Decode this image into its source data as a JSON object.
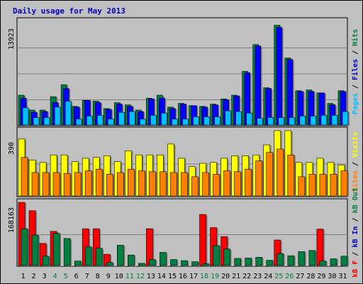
{
  "chart_data": {
    "type": "bar",
    "title": "Daily usage for May 2013",
    "categories": [
      "1",
      "2",
      "3",
      "4",
      "5",
      "6",
      "7",
      "8",
      "9",
      "10",
      "11",
      "12",
      "13",
      "14",
      "15",
      "16",
      "17",
      "18",
      "19",
      "20",
      "21",
      "22",
      "23",
      "24",
      "25",
      "26",
      "27",
      "28",
      "29",
      "30",
      "31"
    ],
    "weekend_days": [
      4,
      5,
      11,
      12,
      18,
      19,
      25,
      26
    ],
    "panels": [
      {
        "id": "hits-files-pages",
        "ylabel_top": "13923",
        "ymax": 13923,
        "right_label": [
          {
            "text": "Pages",
            "color": "#00c0ff"
          },
          {
            "text": " / ",
            "color": "#000000"
          },
          {
            "text": "Files",
            "color": "#0000c0"
          },
          {
            "text": " / ",
            "color": "#000000"
          },
          {
            "text": "Hits",
            "color": "#008040"
          }
        ],
        "series": [
          {
            "name": "Hits",
            "color": "#008040",
            "values": [
              4000,
              2000,
              2000,
              3800,
              5400,
              2500,
              3300,
              3200,
              2200,
              3000,
              2700,
              2000,
              3600,
              4000,
              2400,
              2900,
              2600,
              2500,
              2800,
              3500,
              4000,
              7200,
              10800,
              5000,
              13400,
              9000,
              4600,
              4700,
              4300,
              2900,
              4600
            ]
          },
          {
            "name": "Files",
            "color": "#0000ff",
            "values": [
              3600,
              1700,
              1800,
              3000,
              4900,
              2400,
              3300,
              3000,
              2100,
              2800,
              2500,
              1800,
              3500,
              3600,
              2200,
              2800,
              2600,
              2400,
              2700,
              3400,
              3900,
              7000,
              10600,
              4900,
              13100,
              8800,
              4500,
              4500,
              4300,
              2700,
              4500
            ]
          },
          {
            "name": "Pages",
            "color": "#00c0ff",
            "values": [
              2300,
              1000,
              1000,
              2400,
              3200,
              800,
              1200,
              1300,
              800,
              1700,
              1800,
              800,
              1300,
              1600,
              800,
              800,
              1100,
              1100,
              1100,
              1900,
              1800,
              1600,
              900,
              1000,
              1000,
              1000,
              1200,
              1200,
              1300,
              1300,
              1800
            ]
          }
        ]
      },
      {
        "id": "visits-sites",
        "ylabel_top": "390",
        "ymax": 390,
        "right_label": [
          {
            "text": "Sites",
            "color": "#ff8000"
          },
          {
            "text": " / ",
            "color": "#000000"
          },
          {
            "text": "Visits",
            "color": "#ffff00"
          }
        ],
        "series": [
          {
            "name": "Visits",
            "color": "#ffff00",
            "values": [
              340,
              215,
              200,
              245,
              245,
              205,
              225,
              230,
              240,
              205,
              270,
              245,
              245,
              245,
              310,
              225,
              175,
              195,
              200,
              225,
              240,
              240,
              245,
              305,
              390,
              390,
              200,
              200,
              225,
              200,
              185
            ]
          },
          {
            "name": "Sites",
            "color": "#ff8000",
            "values": [
              230,
              140,
              140,
              140,
              135,
              140,
              150,
              160,
              130,
              140,
              160,
              150,
              145,
              145,
              140,
              140,
              115,
              140,
              130,
              150,
              145,
              160,
              210,
              260,
              280,
              245,
              115,
              130,
              130,
              130,
              150
            ]
          }
        ]
      },
      {
        "id": "kb-in-out",
        "ylabel_top": "168163",
        "ymax": 168163,
        "right_label": [
          {
            "text": "kB F",
            "color": "#ff0000"
          },
          {
            "text": " / ",
            "color": "#000000"
          },
          {
            "text": "kB In",
            "color": "#0000c0"
          },
          {
            "text": " / ",
            "color": "#000000"
          },
          {
            "text": "kB Out",
            "color": "#008040"
          }
        ],
        "series": [
          {
            "name": "kB F",
            "color": "#ff0000",
            "values": [
              168163,
              146000,
              59000,
              91000,
              0,
              0,
              98000,
              98000,
              30000,
              0,
              0,
              0,
              98000,
              0,
              0,
              0,
              0,
              136000,
              101000,
              77000,
              0,
              0,
              0,
              0,
              68000,
              0,
              0,
              0,
              97000,
              0,
              0
            ]
          },
          {
            "name": "kB Out",
            "color": "#008040",
            "values": [
              98000,
              81000,
              25000,
              86000,
              72000,
              12000,
              50000,
              46000,
              8000,
              54000,
              28000,
              6000,
              16000,
              35000,
              16000,
              13000,
              10000,
              5000,
              53000,
              44000,
              19000,
              20000,
              22000,
              14000,
              32000,
              26000,
              37000,
              40000,
              12000,
              18000,
              25000
            ]
          }
        ]
      }
    ]
  }
}
